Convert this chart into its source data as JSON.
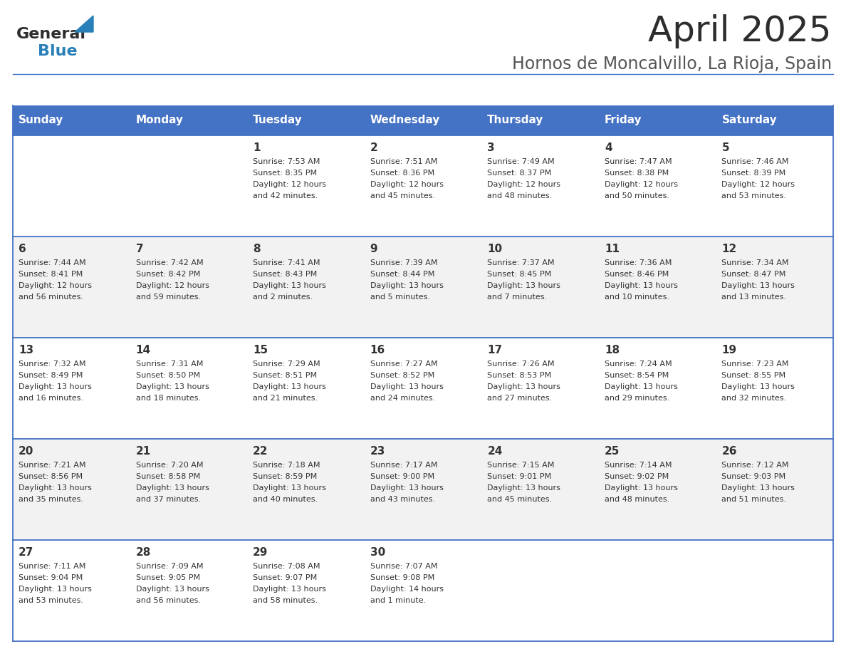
{
  "title": "April 2025",
  "subtitle": "Hornos de Moncalvillo, La Rioja, Spain",
  "header_bg_color": "#4472C4",
  "header_text_color": "#FFFFFF",
  "row_bg_colors": [
    "#FFFFFF",
    "#F2F2F2",
    "#FFFFFF",
    "#F2F2F2",
    "#FFFFFF"
  ],
  "border_color": "#4472C4",
  "text_color": "#333333",
  "day_names": [
    "Sunday",
    "Monday",
    "Tuesday",
    "Wednesday",
    "Thursday",
    "Friday",
    "Saturday"
  ],
  "weeks": [
    [
      {
        "day": "",
        "sunrise": "",
        "sunset": "",
        "daylight1": "",
        "daylight2": ""
      },
      {
        "day": "",
        "sunrise": "",
        "sunset": "",
        "daylight1": "",
        "daylight2": ""
      },
      {
        "day": "1",
        "sunrise": "Sunrise: 7:53 AM",
        "sunset": "Sunset: 8:35 PM",
        "daylight1": "Daylight: 12 hours",
        "daylight2": "and 42 minutes."
      },
      {
        "day": "2",
        "sunrise": "Sunrise: 7:51 AM",
        "sunset": "Sunset: 8:36 PM",
        "daylight1": "Daylight: 12 hours",
        "daylight2": "and 45 minutes."
      },
      {
        "day": "3",
        "sunrise": "Sunrise: 7:49 AM",
        "sunset": "Sunset: 8:37 PM",
        "daylight1": "Daylight: 12 hours",
        "daylight2": "and 48 minutes."
      },
      {
        "day": "4",
        "sunrise": "Sunrise: 7:47 AM",
        "sunset": "Sunset: 8:38 PM",
        "daylight1": "Daylight: 12 hours",
        "daylight2": "and 50 minutes."
      },
      {
        "day": "5",
        "sunrise": "Sunrise: 7:46 AM",
        "sunset": "Sunset: 8:39 PM",
        "daylight1": "Daylight: 12 hours",
        "daylight2": "and 53 minutes."
      }
    ],
    [
      {
        "day": "6",
        "sunrise": "Sunrise: 7:44 AM",
        "sunset": "Sunset: 8:41 PM",
        "daylight1": "Daylight: 12 hours",
        "daylight2": "and 56 minutes."
      },
      {
        "day": "7",
        "sunrise": "Sunrise: 7:42 AM",
        "sunset": "Sunset: 8:42 PM",
        "daylight1": "Daylight: 12 hours",
        "daylight2": "and 59 minutes."
      },
      {
        "day": "8",
        "sunrise": "Sunrise: 7:41 AM",
        "sunset": "Sunset: 8:43 PM",
        "daylight1": "Daylight: 13 hours",
        "daylight2": "and 2 minutes."
      },
      {
        "day": "9",
        "sunrise": "Sunrise: 7:39 AM",
        "sunset": "Sunset: 8:44 PM",
        "daylight1": "Daylight: 13 hours",
        "daylight2": "and 5 minutes."
      },
      {
        "day": "10",
        "sunrise": "Sunrise: 7:37 AM",
        "sunset": "Sunset: 8:45 PM",
        "daylight1": "Daylight: 13 hours",
        "daylight2": "and 7 minutes."
      },
      {
        "day": "11",
        "sunrise": "Sunrise: 7:36 AM",
        "sunset": "Sunset: 8:46 PM",
        "daylight1": "Daylight: 13 hours",
        "daylight2": "and 10 minutes."
      },
      {
        "day": "12",
        "sunrise": "Sunrise: 7:34 AM",
        "sunset": "Sunset: 8:47 PM",
        "daylight1": "Daylight: 13 hours",
        "daylight2": "and 13 minutes."
      }
    ],
    [
      {
        "day": "13",
        "sunrise": "Sunrise: 7:32 AM",
        "sunset": "Sunset: 8:49 PM",
        "daylight1": "Daylight: 13 hours",
        "daylight2": "and 16 minutes."
      },
      {
        "day": "14",
        "sunrise": "Sunrise: 7:31 AM",
        "sunset": "Sunset: 8:50 PM",
        "daylight1": "Daylight: 13 hours",
        "daylight2": "and 18 minutes."
      },
      {
        "day": "15",
        "sunrise": "Sunrise: 7:29 AM",
        "sunset": "Sunset: 8:51 PM",
        "daylight1": "Daylight: 13 hours",
        "daylight2": "and 21 minutes."
      },
      {
        "day": "16",
        "sunrise": "Sunrise: 7:27 AM",
        "sunset": "Sunset: 8:52 PM",
        "daylight1": "Daylight: 13 hours",
        "daylight2": "and 24 minutes."
      },
      {
        "day": "17",
        "sunrise": "Sunrise: 7:26 AM",
        "sunset": "Sunset: 8:53 PM",
        "daylight1": "Daylight: 13 hours",
        "daylight2": "and 27 minutes."
      },
      {
        "day": "18",
        "sunrise": "Sunrise: 7:24 AM",
        "sunset": "Sunset: 8:54 PM",
        "daylight1": "Daylight: 13 hours",
        "daylight2": "and 29 minutes."
      },
      {
        "day": "19",
        "sunrise": "Sunrise: 7:23 AM",
        "sunset": "Sunset: 8:55 PM",
        "daylight1": "Daylight: 13 hours",
        "daylight2": "and 32 minutes."
      }
    ],
    [
      {
        "day": "20",
        "sunrise": "Sunrise: 7:21 AM",
        "sunset": "Sunset: 8:56 PM",
        "daylight1": "Daylight: 13 hours",
        "daylight2": "and 35 minutes."
      },
      {
        "day": "21",
        "sunrise": "Sunrise: 7:20 AM",
        "sunset": "Sunset: 8:58 PM",
        "daylight1": "Daylight: 13 hours",
        "daylight2": "and 37 minutes."
      },
      {
        "day": "22",
        "sunrise": "Sunrise: 7:18 AM",
        "sunset": "Sunset: 8:59 PM",
        "daylight1": "Daylight: 13 hours",
        "daylight2": "and 40 minutes."
      },
      {
        "day": "23",
        "sunrise": "Sunrise: 7:17 AM",
        "sunset": "Sunset: 9:00 PM",
        "daylight1": "Daylight: 13 hours",
        "daylight2": "and 43 minutes."
      },
      {
        "day": "24",
        "sunrise": "Sunrise: 7:15 AM",
        "sunset": "Sunset: 9:01 PM",
        "daylight1": "Daylight: 13 hours",
        "daylight2": "and 45 minutes."
      },
      {
        "day": "25",
        "sunrise": "Sunrise: 7:14 AM",
        "sunset": "Sunset: 9:02 PM",
        "daylight1": "Daylight: 13 hours",
        "daylight2": "and 48 minutes."
      },
      {
        "day": "26",
        "sunrise": "Sunrise: 7:12 AM",
        "sunset": "Sunset: 9:03 PM",
        "daylight1": "Daylight: 13 hours",
        "daylight2": "and 51 minutes."
      }
    ],
    [
      {
        "day": "27",
        "sunrise": "Sunrise: 7:11 AM",
        "sunset": "Sunset: 9:04 PM",
        "daylight1": "Daylight: 13 hours",
        "daylight2": "and 53 minutes."
      },
      {
        "day": "28",
        "sunrise": "Sunrise: 7:09 AM",
        "sunset": "Sunset: 9:05 PM",
        "daylight1": "Daylight: 13 hours",
        "daylight2": "and 56 minutes."
      },
      {
        "day": "29",
        "sunrise": "Sunrise: 7:08 AM",
        "sunset": "Sunset: 9:07 PM",
        "daylight1": "Daylight: 13 hours",
        "daylight2": "and 58 minutes."
      },
      {
        "day": "30",
        "sunrise": "Sunrise: 7:07 AM",
        "sunset": "Sunset: 9:08 PM",
        "daylight1": "Daylight: 14 hours",
        "daylight2": "and 1 minute."
      },
      {
        "day": "",
        "sunrise": "",
        "sunset": "",
        "daylight1": "",
        "daylight2": ""
      },
      {
        "day": "",
        "sunrise": "",
        "sunset": "",
        "daylight1": "",
        "daylight2": ""
      },
      {
        "day": "",
        "sunrise": "",
        "sunset": "",
        "daylight1": "",
        "daylight2": ""
      }
    ]
  ],
  "logo_general_color": "#2d2d2d",
  "logo_blue_color": "#2980B9",
  "title_color": "#2d2d2d",
  "subtitle_color": "#555555",
  "title_fontsize": 36,
  "subtitle_fontsize": 17,
  "header_fontsize": 11,
  "day_num_fontsize": 11,
  "cell_text_fontsize": 8
}
